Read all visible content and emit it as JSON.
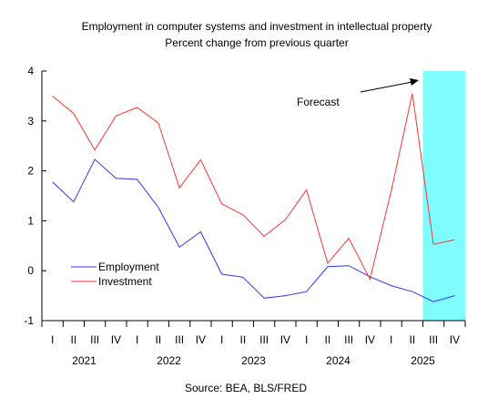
{
  "chart_data": {
    "type": "line",
    "title": "Employment in computer systems and investment in intellectual property",
    "subtitle": "Percent change from previous quarter",
    "source": "Source: BEA, BLS/FRED",
    "annotation": "Forecast",
    "ylim": [
      -1,
      4
    ],
    "yticks": [
      -1,
      0,
      1,
      2,
      3,
      4
    ],
    "quarters": [
      "I",
      "II",
      "III",
      "IV",
      "I",
      "II",
      "III",
      "IV",
      "I",
      "II",
      "III",
      "IV",
      "I",
      "II",
      "III",
      "IV",
      "I",
      "II",
      "III",
      "IV"
    ],
    "years": [
      "2021",
      "2022",
      "2023",
      "2024",
      "2025"
    ],
    "forecast_shade": {
      "from_index": 18,
      "to_index": 19,
      "color": "#7ffcff"
    },
    "series": [
      {
        "name": "Employment",
        "color": "#3333ff",
        "values": [
          1.78,
          1.38,
          2.23,
          1.85,
          1.83,
          1.27,
          0.47,
          0.78,
          -0.07,
          -0.13,
          -0.55,
          -0.5,
          -0.42,
          0.08,
          0.1,
          -0.12,
          -0.3,
          -0.42,
          -0.62,
          -0.5
        ]
      },
      {
        "name": "Investment",
        "color": "#ff3333",
        "values": [
          3.5,
          3.15,
          2.42,
          3.1,
          3.27,
          2.96,
          1.66,
          2.22,
          1.34,
          1.12,
          0.69,
          1.02,
          1.62,
          0.15,
          0.65,
          -0.17,
          1.59,
          3.55,
          0.53,
          0.62
        ]
      }
    ]
  }
}
